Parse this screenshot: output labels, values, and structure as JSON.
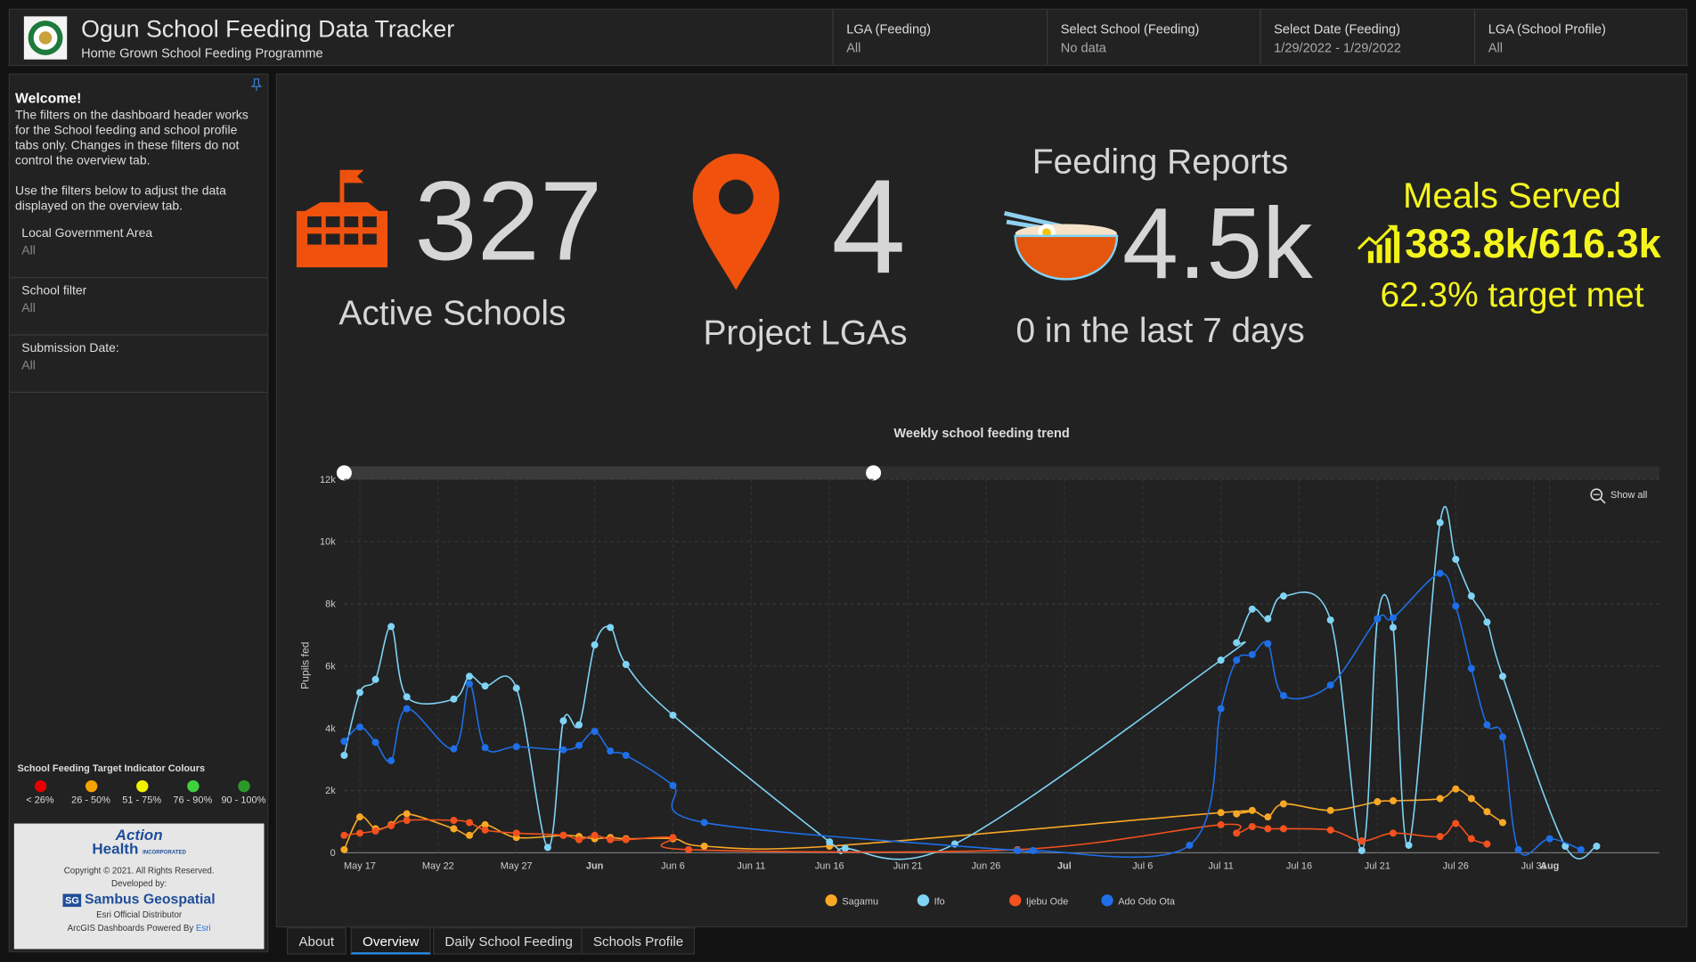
{
  "header": {
    "title": "Ogun School Feeding Data Tracker",
    "subtitle": "Home Grown School Feeding Programme",
    "filters": [
      {
        "label": "LGA (Feeding)",
        "value": "All"
      },
      {
        "label": "Select School (Feeding)",
        "value": "No data"
      },
      {
        "label": "Select Date (Feeding)",
        "value": "1/29/2022 - 1/29/2022"
      },
      {
        "label": "LGA (School Profile)",
        "value": "All"
      }
    ]
  },
  "sidebar": {
    "welcome_title": "Welcome!",
    "welcome_text": [
      "The filters on the dashboard header works for the School feeding and school profile tabs only. Changes in these filters do not control the overview tab.",
      "Use the filters below to adjust the data displayed on the overview tab."
    ],
    "filters": [
      {
        "label": "Local Government Area",
        "value": "All"
      },
      {
        "label": "School filter",
        "value": "All"
      },
      {
        "label": "Submission Date:",
        "value": "All"
      }
    ],
    "legend": {
      "title": "School Feeding Target Indicator Colours",
      "items": [
        {
          "label": "< 26%",
          "color": "#e60000"
        },
        {
          "label": "26 - 50%",
          "color": "#f5a300"
        },
        {
          "label": "51 - 75%",
          "color": "#f2f200"
        },
        {
          "label": "76 - 90%",
          "color": "#3fd13f"
        },
        {
          "label": "90 - 100%",
          "color": "#2a9a2a"
        }
      ]
    },
    "credits": {
      "org": "Action",
      "org2": "Health",
      "org_sub": "INCORPORATED",
      "copyright": "Copyright © 2021. All Rights Reserved.",
      "developed_by": "Developed by:",
      "developer": "Sambus Geospatial",
      "distributor": "Esri Official Distributor",
      "powered_by": "ArcGIS Dashboards Powered By",
      "esri": "Esri"
    }
  },
  "indicators": [
    {
      "value": 327,
      "label": "Active Schools"
    },
    {
      "value": 4,
      "label": "Project LGAs"
    },
    {
      "title": "Feeding Reports",
      "value": "4.5k",
      "subtitle": "0 in the last 7 days"
    },
    {
      "title": "Meals Served",
      "value": "383.8k/616.3k",
      "subtitle": "62.3% target met"
    }
  ],
  "chart_data": {
    "type": "line",
    "title": "Weekly school feeding trend",
    "y_label": "Pupils fed",
    "zoom_label": "Show all",
    "xlim": [
      "May 16",
      "Aug 8"
    ],
    "ylim": [
      0,
      12000
    ],
    "xticks": [
      "May 17",
      "May 22",
      "May 27",
      {
        "value": "Jun 1",
        "label": "Jun"
      },
      "Jun 6",
      "Jun 11",
      "Jun 16",
      "Jun 21",
      "Jun 26",
      {
        "value": "Jul 1",
        "label": "Jul"
      },
      "Jul 6",
      "Jul 11",
      "Jul 16",
      "Jul 21",
      "Jul 26",
      "Jul 31",
      {
        "value": "Aug 1",
        "label": "Aug"
      }
    ],
    "yticks": [
      0,
      {
        "value": 2000,
        "label": "2k"
      },
      {
        "value": 4000,
        "label": "4k"
      },
      {
        "value": 6000,
        "label": "6k"
      },
      {
        "value": 8000,
        "label": "8k"
      },
      {
        "value": 10000,
        "label": "10k"
      },
      {
        "value": 12000,
        "label": "12k"
      }
    ],
    "grid": true,
    "series": [
      {
        "name": "Sagamu",
        "color": "#f9a825",
        "x": [
          "May 16",
          "May 17",
          "May 18",
          "May 19",
          "May 20",
          "May 23",
          "May 24",
          "May 25",
          "May 27",
          "May 30",
          "May 31",
          "Jun 1",
          "Jun 2",
          "Jun 3",
          "Jun 6",
          "Jun 8",
          "Jun 16",
          "Jul 11",
          "Jul 12",
          "Jul 13",
          "Jul 14",
          "Jul 15",
          "Jul 18",
          "Jul 21",
          "Jul 22",
          "Jul 25",
          "Jul 26",
          "Jul 27",
          "Jul 28",
          "Jul 29"
        ],
        "values": [
          100,
          1150,
          770,
          900,
          1250,
          770,
          560,
          900,
          490,
          560,
          520,
          450,
          490,
          450,
          450,
          210,
          210,
          1290,
          1250,
          1360,
          1150,
          1570,
          1360,
          1640,
          1670,
          1740,
          2050,
          1740,
          1320,
          970
        ]
      },
      {
        "name": "Ifo",
        "color": "#7fd4f5",
        "x": [
          "May 16",
          "May 17",
          "May 18",
          "May 19",
          "May 20",
          "May 23",
          "May 24",
          "May 25",
          "May 27",
          "May 29",
          "May 30",
          "May 31",
          "Jun 1",
          "Jun 2",
          "Jun 3",
          "Jun 6",
          "Jun 16",
          "Jun 17",
          "Jun 24",
          "Jul 11",
          "Jul 12",
          "Jul 13",
          "Jul 14",
          "Jul 15",
          "Jul 18",
          "Jul 20",
          "Jul 21",
          "Jul 22",
          "Jul 23",
          "Jul 25",
          "Jul 26",
          "Jul 27",
          "Jul 28",
          "Jul 29",
          "Aug 2",
          "Aug 4"
        ],
        "values": [
          3130,
          5150,
          5570,
          7270,
          5010,
          4940,
          5670,
          5360,
          5290,
          170,
          4240,
          4110,
          6680,
          7240,
          6050,
          4420,
          350,
          140,
          280,
          6190,
          6750,
          7830,
          7520,
          8250,
          7480,
          70,
          7520,
          7240,
          240,
          10610,
          9430,
          8250,
          7410,
          5670,
          210,
          210
        ]
      },
      {
        "name": "Ijebu Ode",
        "color": "#f4511e",
        "x": [
          "May 16",
          "May 17",
          "May 18",
          "May 19",
          "May 20",
          "May 23",
          "May 24",
          "May 25",
          "May 27",
          "May 30",
          "May 31",
          "Jun 1",
          "Jun 2",
          "Jun 3",
          "Jun 6",
          "Jun 7",
          "Jun 28",
          "Jul 11",
          "Jul 12",
          "Jul 13",
          "Jul 14",
          "Jul 15",
          "Jul 18",
          "Jul 20",
          "Jul 22",
          "Jul 25",
          "Jul 26",
          "Jul 27",
          "Jul 28"
        ],
        "values": [
          560,
          630,
          700,
          870,
          1040,
          1040,
          970,
          730,
          630,
          560,
          420,
          560,
          420,
          420,
          490,
          100,
          100,
          900,
          630,
          840,
          770,
          770,
          730,
          380,
          630,
          520,
          940,
          450,
          280
        ]
      },
      {
        "name": "Ado Odo Ota",
        "color": "#1e6fe8",
        "x": [
          "May 16",
          "May 17",
          "May 18",
          "May 19",
          "May 20",
          "May 23",
          "May 24",
          "May 25",
          "May 27",
          "May 30",
          "May 31",
          "Jun 1",
          "Jun 2",
          "Jun 3",
          "Jun 6",
          "Jun 8",
          "Jun 28",
          "Jun 29",
          "Jul 9",
          "Jul 11",
          "Jul 12",
          "Jul 13",
          "Jul 14",
          "Jul 15",
          "Jul 18",
          "Jul 21",
          "Jul 22",
          "Jul 25",
          "Jul 26",
          "Jul 27",
          "Jul 28",
          "Jul 29",
          "Jul 30",
          "Aug 1",
          "Aug 3"
        ],
        "values": [
          3580,
          4040,
          3550,
          2960,
          4630,
          3340,
          5430,
          3380,
          3410,
          3310,
          3450,
          3900,
          3270,
          3130,
          2160,
          970,
          70,
          70,
          240,
          4630,
          6190,
          6370,
          6720,
          5050,
          5390,
          7520,
          7550,
          8980,
          7930,
          5920,
          4110,
          3720,
          100,
          450,
          100
        ]
      }
    ]
  },
  "tabs": [
    "About",
    "Overview",
    "Daily School Feeding",
    "Schools Profile"
  ],
  "active_tab": 1
}
